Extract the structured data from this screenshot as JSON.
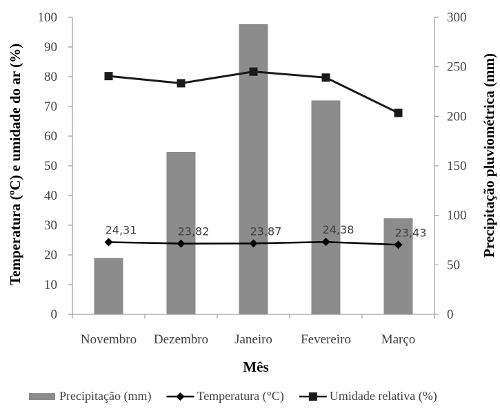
{
  "chart_data": {
    "type": "bar",
    "categories": [
      "Novembro",
      "Dezembro",
      "Janeiro",
      "Fevereiro",
      "Março"
    ],
    "xlabel": "Mês",
    "ylabel_left": "Temperatura (ºC) e umidade do ar (%)",
    "ylabel_right": "Precipitação pluviométrica (mm)",
    "ylim_left": [
      0,
      100
    ],
    "yticks_left": [
      0,
      10,
      20,
      30,
      40,
      50,
      60,
      70,
      80,
      90,
      100
    ],
    "ylim_right": [
      0,
      300
    ],
    "yticks_right": [
      0,
      50,
      100,
      150,
      200,
      250,
      300
    ],
    "legend_position": "bottom",
    "grid": false,
    "series": [
      {
        "name": "Precipitação (mm)",
        "kind": "bar",
        "axis": "right",
        "color": "#8c8c8c",
        "values": [
          57,
          164,
          293,
          216,
          97
        ]
      },
      {
        "name": "Temperatura (°C)",
        "kind": "line",
        "marker": "diamond",
        "axis": "left",
        "color": "#000000",
        "values": [
          24.31,
          23.82,
          23.87,
          24.38,
          23.43
        ],
        "data_labels": [
          "24,31",
          "23,82",
          "23,87",
          "24,38",
          "23,43"
        ]
      },
      {
        "name": "Umidade relativa (%)",
        "kind": "line",
        "marker": "square",
        "axis": "left",
        "color": "#1a1a1a",
        "values": [
          80.2,
          77.8,
          81.7,
          79.7,
          67.8
        ]
      }
    ]
  }
}
